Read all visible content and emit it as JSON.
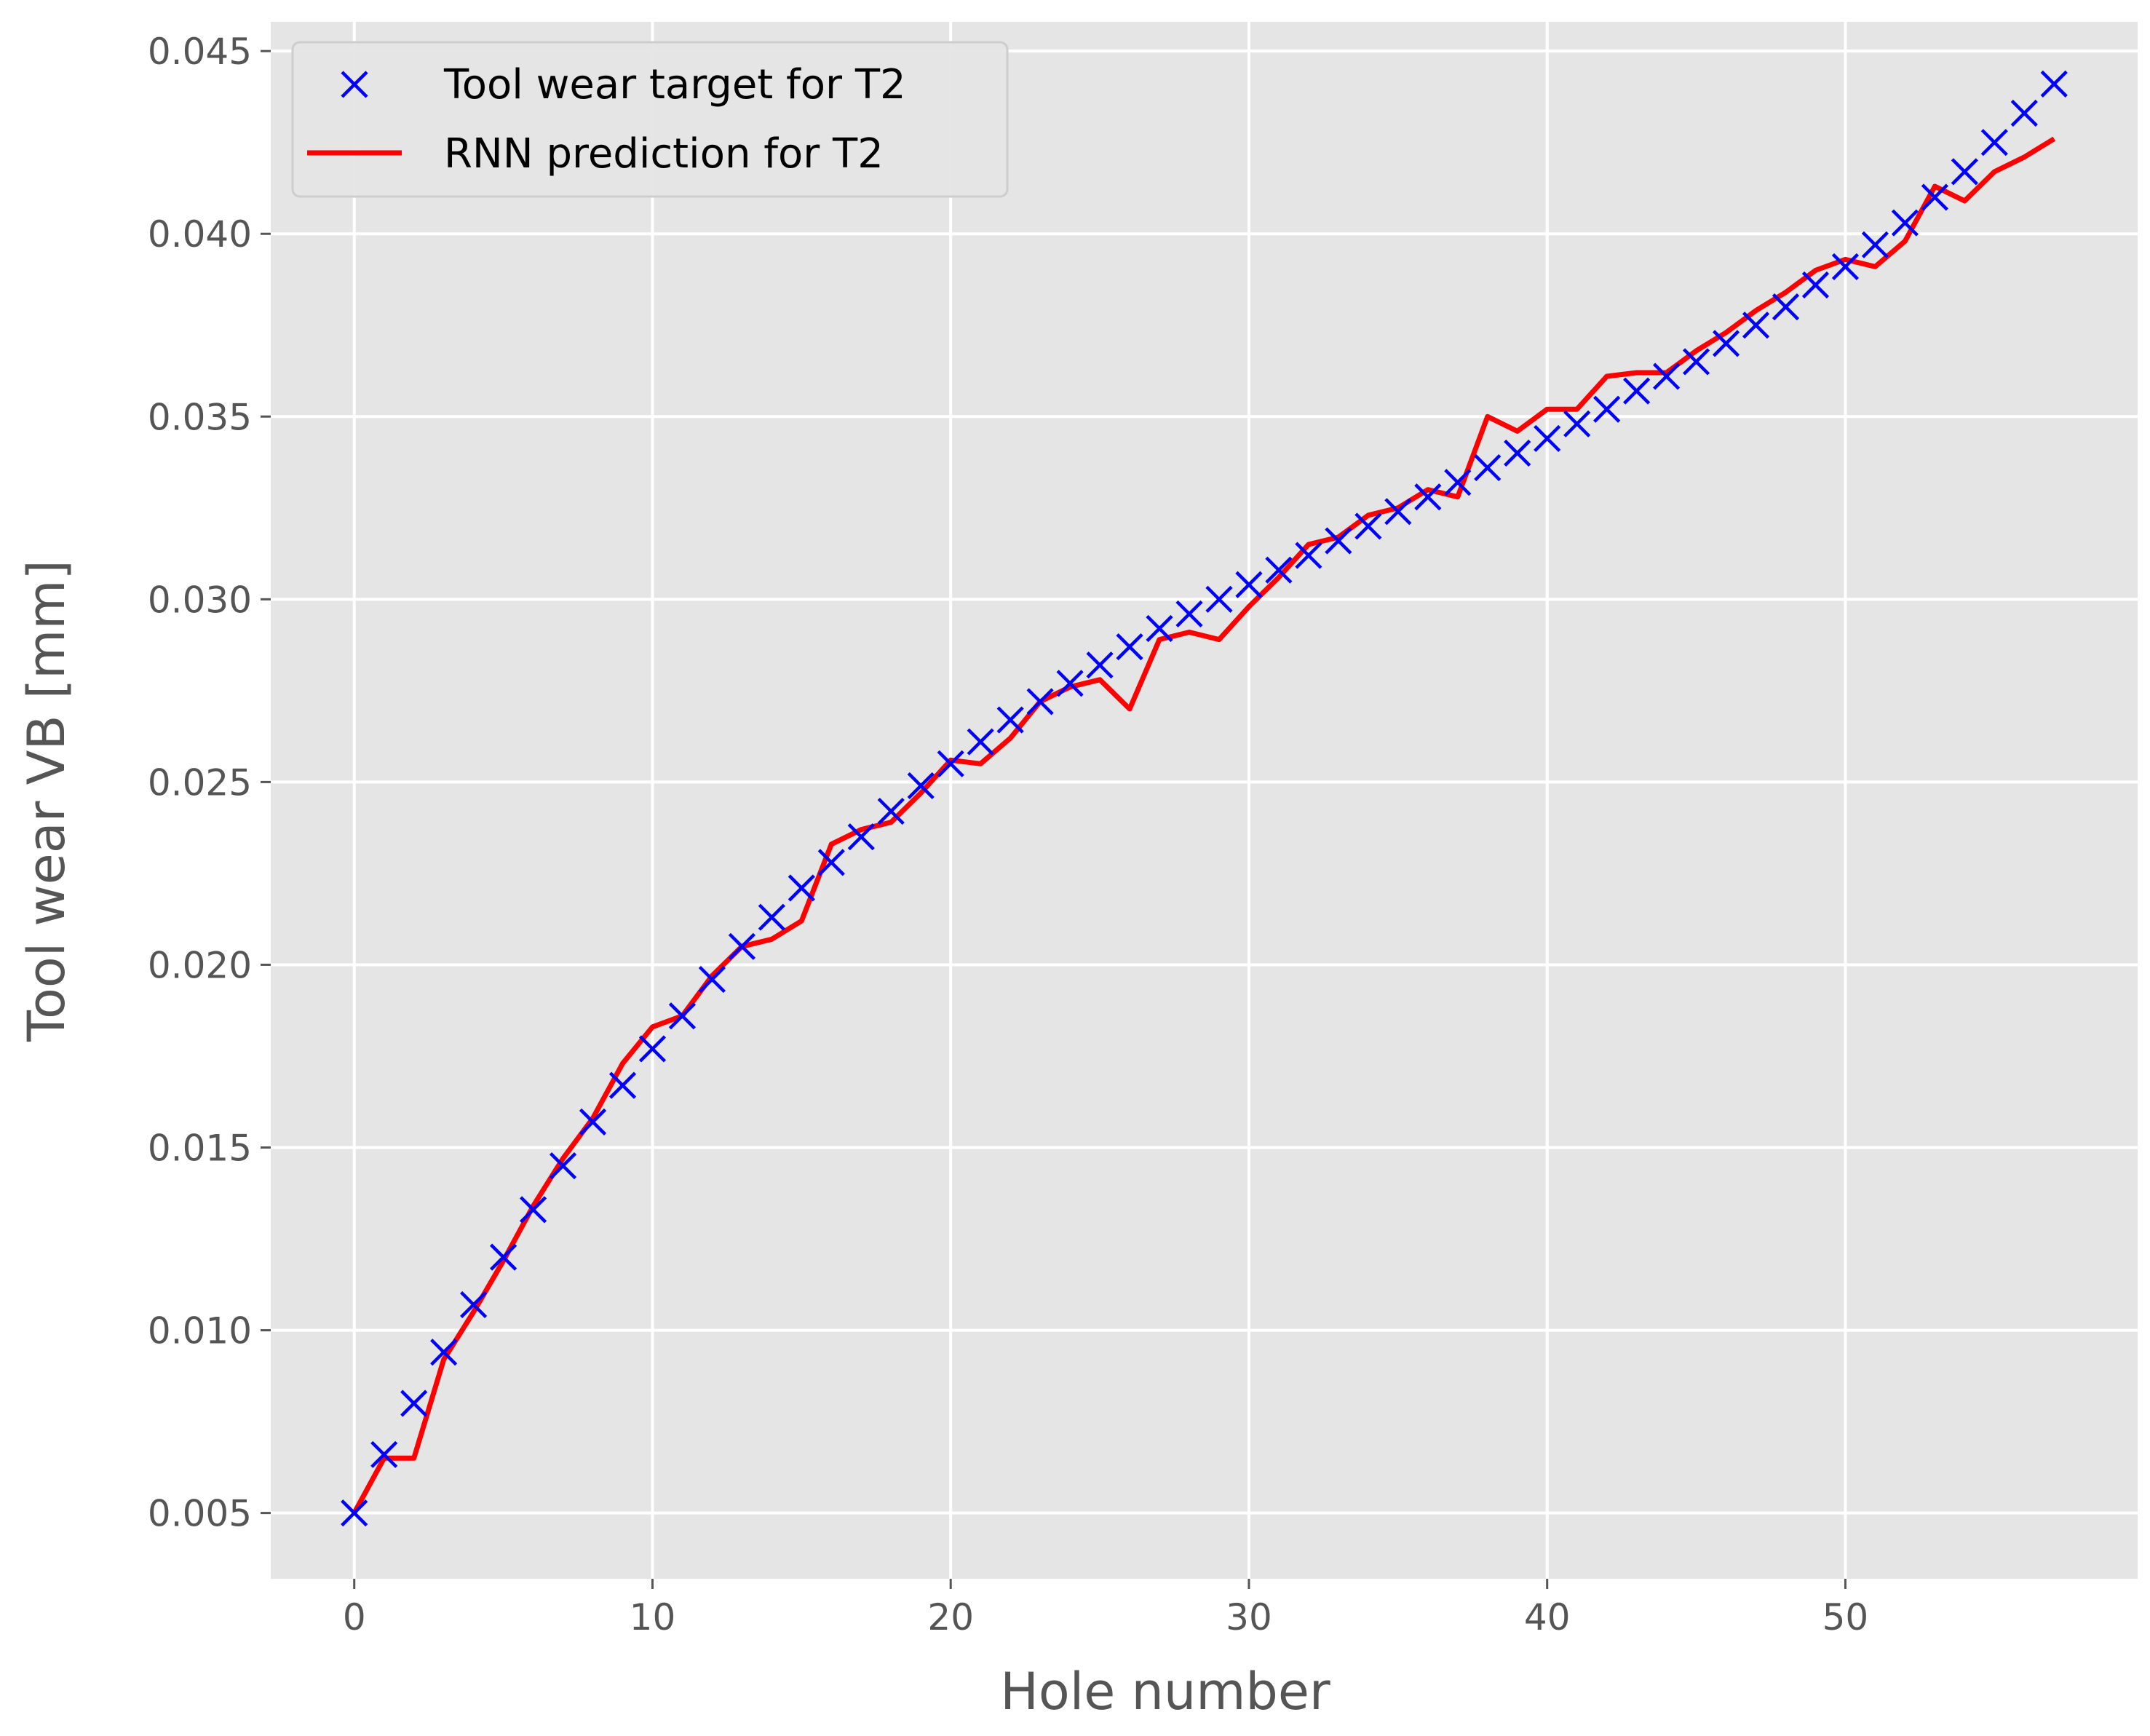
{
  "chart_data": {
    "type": "line",
    "xlabel": "Hole number",
    "ylabel": "Tool wear VB [mm]",
    "xlim": [
      -2.8,
      59.8
    ],
    "ylim": [
      0.0032,
      0.0458
    ],
    "xticks": [
      0,
      10,
      20,
      30,
      40,
      50
    ],
    "xtick_labels": [
      "0",
      "10",
      "20",
      "30",
      "40",
      "50"
    ],
    "yticks": [
      0.005,
      0.01,
      0.015,
      0.02,
      0.025,
      0.03,
      0.035,
      0.04,
      0.045
    ],
    "ytick_labels": [
      "0.005",
      "0.010",
      "0.015",
      "0.020",
      "0.025",
      "0.030",
      "0.035",
      "0.040",
      "0.045"
    ],
    "grid": true,
    "legend_position": "top-left",
    "series": [
      {
        "name": "Tool wear target for T2",
        "style": "marker-x",
        "color": "#0000ff",
        "x": [
          0,
          1,
          2,
          3,
          4,
          5,
          6,
          7,
          8,
          9,
          10,
          11,
          12,
          13,
          14,
          15,
          16,
          17,
          18,
          19,
          20,
          21,
          22,
          23,
          24,
          25,
          26,
          27,
          28,
          29,
          30,
          31,
          32,
          33,
          34,
          35,
          36,
          37,
          38,
          39,
          40,
          41,
          42,
          43,
          44,
          45,
          46,
          47,
          48,
          49,
          50,
          51,
          52,
          53,
          54,
          55,
          56,
          57
        ],
        "y": [
          0.005,
          0.0066,
          0.008,
          0.0094,
          0.0107,
          0.012,
          0.0133,
          0.0145,
          0.0157,
          0.0167,
          0.0177,
          0.0186,
          0.0196,
          0.0205,
          0.0213,
          0.0221,
          0.0228,
          0.0235,
          0.0242,
          0.0249,
          0.0255,
          0.0261,
          0.0267,
          0.0272,
          0.0277,
          0.0282,
          0.0287,
          0.0292,
          0.0296,
          0.03,
          0.0304,
          0.0308,
          0.0312,
          0.0316,
          0.032,
          0.0324,
          0.0328,
          0.0332,
          0.0336,
          0.034,
          0.0344,
          0.0348,
          0.0352,
          0.0357,
          0.0361,
          0.0365,
          0.037,
          0.0375,
          0.038,
          0.0386,
          0.0391,
          0.0397,
          0.0403,
          0.041,
          0.0417,
          0.0425,
          0.0433,
          0.0441
        ]
      },
      {
        "name": "RNN prediction for T2",
        "style": "line",
        "color": "#ff0000",
        "x": [
          0,
          1,
          2,
          3,
          4,
          5,
          6,
          7,
          8,
          9,
          10,
          11,
          12,
          13,
          14,
          15,
          16,
          17,
          18,
          19,
          20,
          21,
          22,
          23,
          24,
          25,
          26,
          27,
          28,
          29,
          30,
          31,
          32,
          33,
          34,
          35,
          36,
          37,
          38,
          39,
          40,
          41,
          42,
          43,
          44,
          45,
          46,
          47,
          48,
          49,
          50,
          51,
          52,
          53,
          54,
          55,
          56,
          57
        ],
        "y": [
          0.005,
          0.0065,
          0.0065,
          0.0092,
          0.0105,
          0.0119,
          0.0134,
          0.0147,
          0.0158,
          0.0173,
          0.0183,
          0.0186,
          0.0197,
          0.0205,
          0.0207,
          0.0212,
          0.0233,
          0.0237,
          0.0239,
          0.0247,
          0.0256,
          0.0255,
          0.0262,
          0.0272,
          0.0276,
          0.0278,
          0.027,
          0.0289,
          0.0291,
          0.0289,
          0.0298,
          0.0306,
          0.0315,
          0.0317,
          0.0323,
          0.0325,
          0.033,
          0.0328,
          0.035,
          0.0346,
          0.0352,
          0.0352,
          0.0361,
          0.0362,
          0.0362,
          0.0368,
          0.0373,
          0.0379,
          0.0384,
          0.039,
          0.0393,
          0.0391,
          0.0398,
          0.0413,
          0.0409,
          0.0417,
          0.0421,
          0.0426
        ]
      }
    ]
  }
}
